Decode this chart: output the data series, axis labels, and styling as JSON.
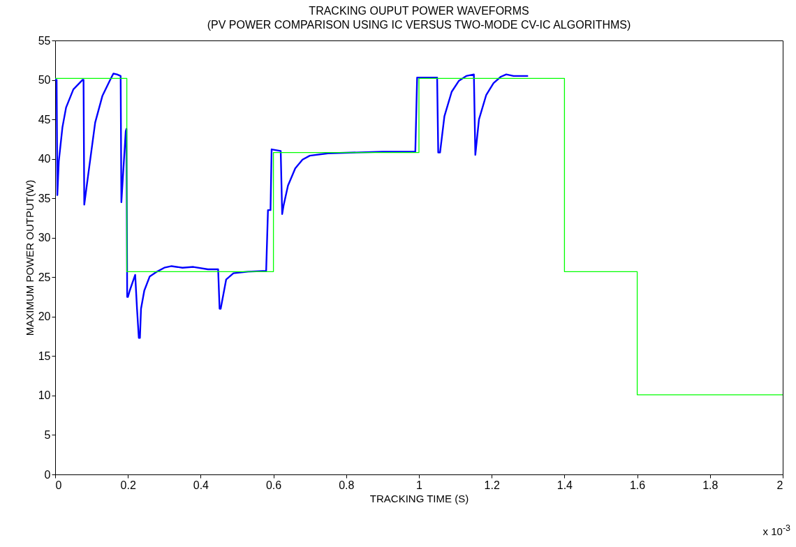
{
  "chart_data": {
    "type": "line",
    "title": [
      "TRACKING OUPUT POWER WAVEFORMS",
      "(PV POWER COMPARISON USING IC VERSUS TWO-MODE CV-IC ALGORITHMS)"
    ],
    "xlabel": "TRACKING TIME (S)",
    "ylabel": "MAXIMUM POWER OUTPUT(W)",
    "annotations": [
      "x 10$^{-3}$"
    ],
    "xlim": [
      0,
      2
    ],
    "xticks": [
      0,
      0.2,
      0.4,
      0.6,
      0.8,
      1,
      1.2,
      1.4,
      1.6,
      1.8,
      2
    ],
    "ylim": [
      0,
      55
    ],
    "yticks": [
      0,
      5,
      10,
      15,
      20,
      25,
      30,
      35,
      40,
      45,
      50,
      55
    ],
    "grid": false,
    "line_style": "solid",
    "marker": "none",
    "series": [
      {
        "color": "#0000ff",
        "x": [
          0,
          0.004,
          0.006,
          0.01,
          0.02,
          0.03,
          0.05,
          0.075,
          0.078,
          0.08,
          0.09,
          0.11,
          0.13,
          0.15,
          0.16,
          0.17,
          0.18,
          0.182,
          0.188,
          0.194,
          0.196,
          0.198,
          0.2,
          0.205,
          0.22,
          0.225,
          0.23,
          0.233,
          0.236,
          0.245,
          0.26,
          0.28,
          0.3,
          0.32,
          0.35,
          0.38,
          0.42,
          0.44,
          0.448,
          0.452,
          0.455,
          0.47,
          0.49,
          0.53,
          0.58,
          0.585,
          0.592,
          0.595,
          0.62,
          0.624,
          0.628,
          0.64,
          0.66,
          0.68,
          0.7,
          0.75,
          0.9,
          0.99,
          0.995,
          1.05,
          1.053,
          1.058,
          1.07,
          1.09,
          1.11,
          1.13,
          1.151,
          1.155,
          1.165,
          1.185,
          1.205,
          1.225,
          1.24,
          1.26,
          1.3
        ],
        "values": [
          50,
          50,
          35.4,
          39.7,
          44,
          46.5,
          48.8,
          50,
          50,
          34.2,
          37.7,
          44.6,
          48,
          49.9,
          50.8,
          50.7,
          50.5,
          34.5,
          39,
          43.5,
          43.8,
          22.5,
          22.5,
          23.3,
          25.3,
          21,
          17.3,
          17.3,
          21,
          23.3,
          25.1,
          25.7,
          26.2,
          26.4,
          26.2,
          26.3,
          26,
          26,
          26,
          21,
          21,
          24.7,
          25.5,
          25.7,
          25.8,
          33.5,
          33.5,
          41.2,
          41,
          33,
          34.1,
          36.6,
          38.8,
          39.9,
          40.4,
          40.7,
          40.9,
          40.9,
          50.3,
          50.3,
          40.8,
          40.8,
          45.4,
          48.5,
          49.9,
          50.5,
          50.7,
          40.5,
          45,
          48.1,
          49.6,
          50.4,
          50.7,
          50.5,
          50.5
        ]
      },
      {
        "type": "step",
        "color": "#00ff00",
        "x": [
          0,
          0.197,
          0.6,
          1,
          1.4,
          1.6,
          2
        ],
        "values": [
          50.2,
          25.7,
          40.8,
          50.2,
          25.7,
          10.1,
          10.1
        ]
      }
    ]
  }
}
